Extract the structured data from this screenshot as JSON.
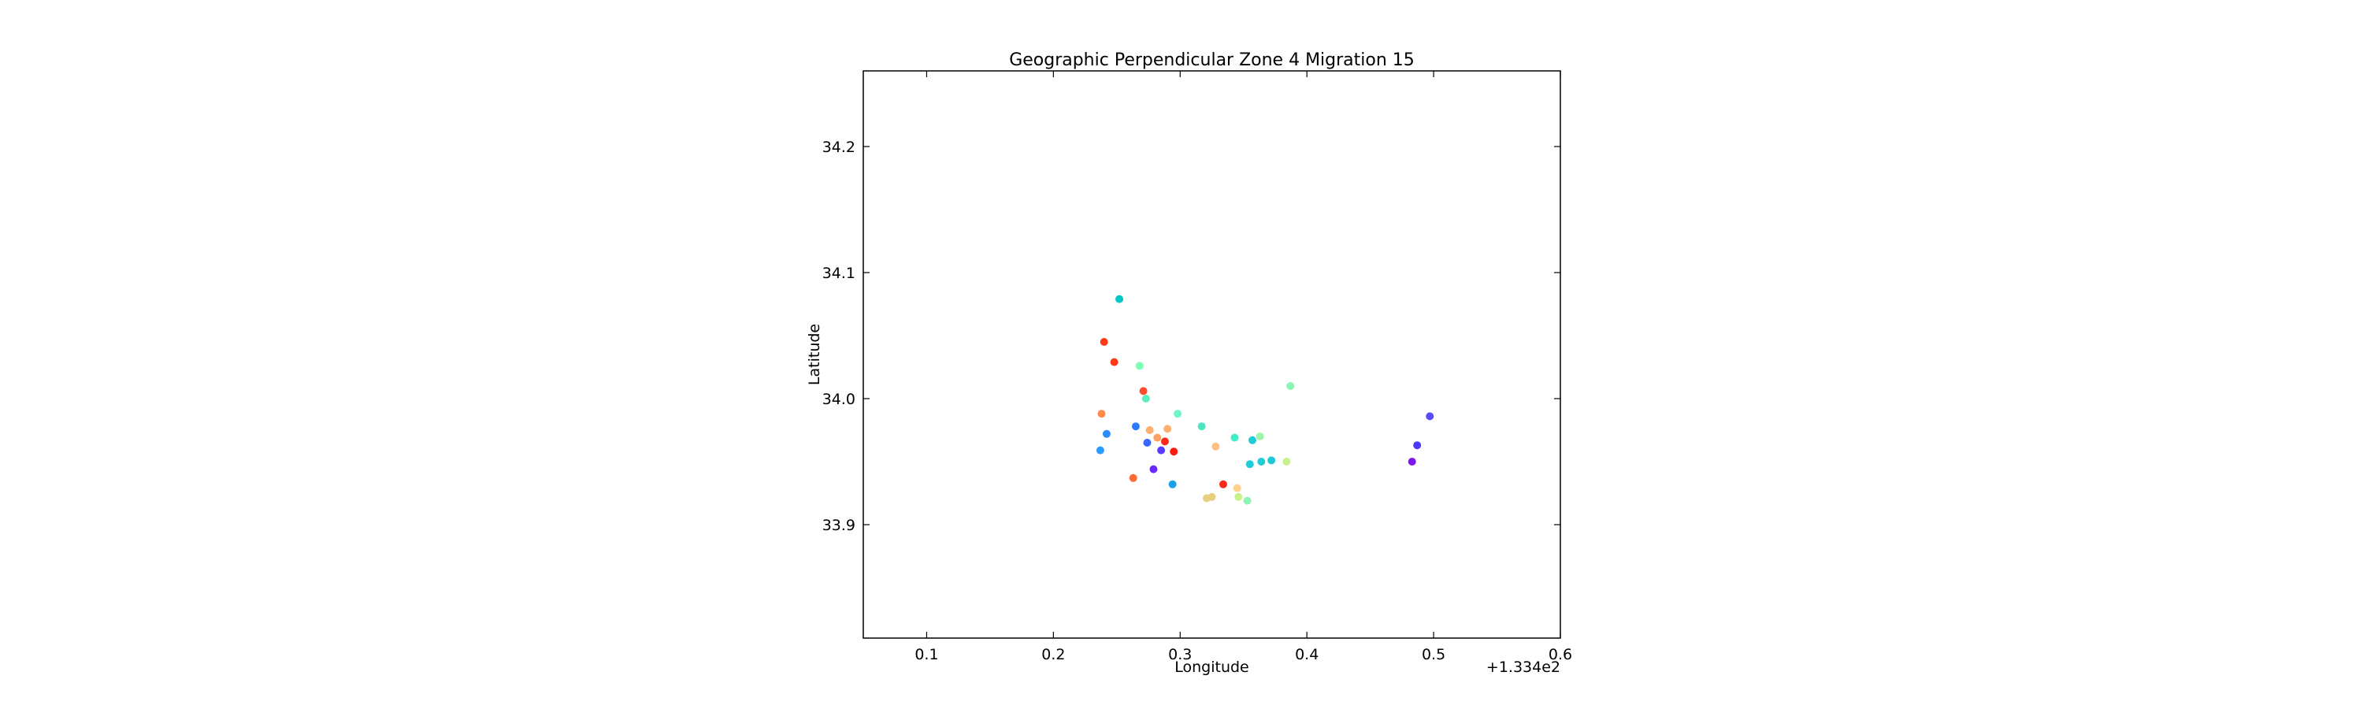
{
  "chart_data": {
    "type": "scatter",
    "title": "Geographic Perpendicular Zone 4 Migration 15",
    "xlabel": "Longitude",
    "ylabel": "Latitude",
    "x_offset_label": "+1.334e2",
    "xlim": [
      0.05,
      0.6
    ],
    "ylim": [
      33.81,
      34.26
    ],
    "x_ticks": [
      0.1,
      0.2,
      0.3,
      0.4,
      0.5,
      0.6
    ],
    "x_tick_labels": [
      "0.1",
      "0.2",
      "0.3",
      "0.4",
      "0.5",
      "0.6"
    ],
    "y_ticks": [
      33.9,
      34.0,
      34.1,
      34.2
    ],
    "y_tick_labels": [
      "33.9",
      "34.0",
      "34.1",
      "34.2"
    ],
    "grid": false,
    "legend": "none",
    "points": [
      {
        "x": 0.252,
        "y": 34.079,
        "color": "#00c8c8"
      },
      {
        "x": 0.24,
        "y": 34.045,
        "color": "#ff3a1a"
      },
      {
        "x": 0.248,
        "y": 34.029,
        "color": "#ff3a1a"
      },
      {
        "x": 0.268,
        "y": 34.026,
        "color": "#7dffb4"
      },
      {
        "x": 0.271,
        "y": 34.006,
        "color": "#ff4d2a"
      },
      {
        "x": 0.273,
        "y": 34.0,
        "color": "#5cf0b8"
      },
      {
        "x": 0.238,
        "y": 33.988,
        "color": "#ff8a50"
      },
      {
        "x": 0.298,
        "y": 33.988,
        "color": "#6ef5c8"
      },
      {
        "x": 0.242,
        "y": 33.972,
        "color": "#2a8cff"
      },
      {
        "x": 0.265,
        "y": 33.978,
        "color": "#2a7cff"
      },
      {
        "x": 0.276,
        "y": 33.975,
        "color": "#ffb070"
      },
      {
        "x": 0.29,
        "y": 33.976,
        "color": "#ffb070"
      },
      {
        "x": 0.317,
        "y": 33.978,
        "color": "#4ee6c0"
      },
      {
        "x": 0.282,
        "y": 33.969,
        "color": "#ffa060"
      },
      {
        "x": 0.274,
        "y": 33.965,
        "color": "#3a66ff"
      },
      {
        "x": 0.288,
        "y": 33.966,
        "color": "#ff2a1a"
      },
      {
        "x": 0.237,
        "y": 33.959,
        "color": "#2a9cff"
      },
      {
        "x": 0.285,
        "y": 33.959,
        "color": "#5a3aff"
      },
      {
        "x": 0.295,
        "y": 33.958,
        "color": "#ff1a10"
      },
      {
        "x": 0.328,
        "y": 33.962,
        "color": "#ffc080"
      },
      {
        "x": 0.343,
        "y": 33.969,
        "color": "#3ef0c8"
      },
      {
        "x": 0.357,
        "y": 33.967,
        "color": "#1ecdd6"
      },
      {
        "x": 0.363,
        "y": 33.97,
        "color": "#9cf5a8"
      },
      {
        "x": 0.355,
        "y": 33.948,
        "color": "#1ecdd6"
      },
      {
        "x": 0.364,
        "y": 33.95,
        "color": "#1ecdd6"
      },
      {
        "x": 0.372,
        "y": 33.951,
        "color": "#1ec8d6"
      },
      {
        "x": 0.384,
        "y": 33.95,
        "color": "#c8f08c"
      },
      {
        "x": 0.387,
        "y": 34.01,
        "color": "#8cf5b4"
      },
      {
        "x": 0.279,
        "y": 33.944,
        "color": "#6a2aff"
      },
      {
        "x": 0.263,
        "y": 33.937,
        "color": "#ff6a3a"
      },
      {
        "x": 0.294,
        "y": 33.932,
        "color": "#1ea0e6"
      },
      {
        "x": 0.334,
        "y": 33.932,
        "color": "#ff2a1a"
      },
      {
        "x": 0.345,
        "y": 33.929,
        "color": "#ffd08c"
      },
      {
        "x": 0.321,
        "y": 33.921,
        "color": "#e6d080"
      },
      {
        "x": 0.325,
        "y": 33.922,
        "color": "#e6d080"
      },
      {
        "x": 0.346,
        "y": 33.922,
        "color": "#c8f08c"
      },
      {
        "x": 0.353,
        "y": 33.919,
        "color": "#8cf5b4"
      },
      {
        "x": 0.497,
        "y": 33.986,
        "color": "#5a4aff"
      },
      {
        "x": 0.487,
        "y": 33.963,
        "color": "#4a3aff"
      },
      {
        "x": 0.483,
        "y": 33.95,
        "color": "#7a1ae6"
      }
    ]
  }
}
